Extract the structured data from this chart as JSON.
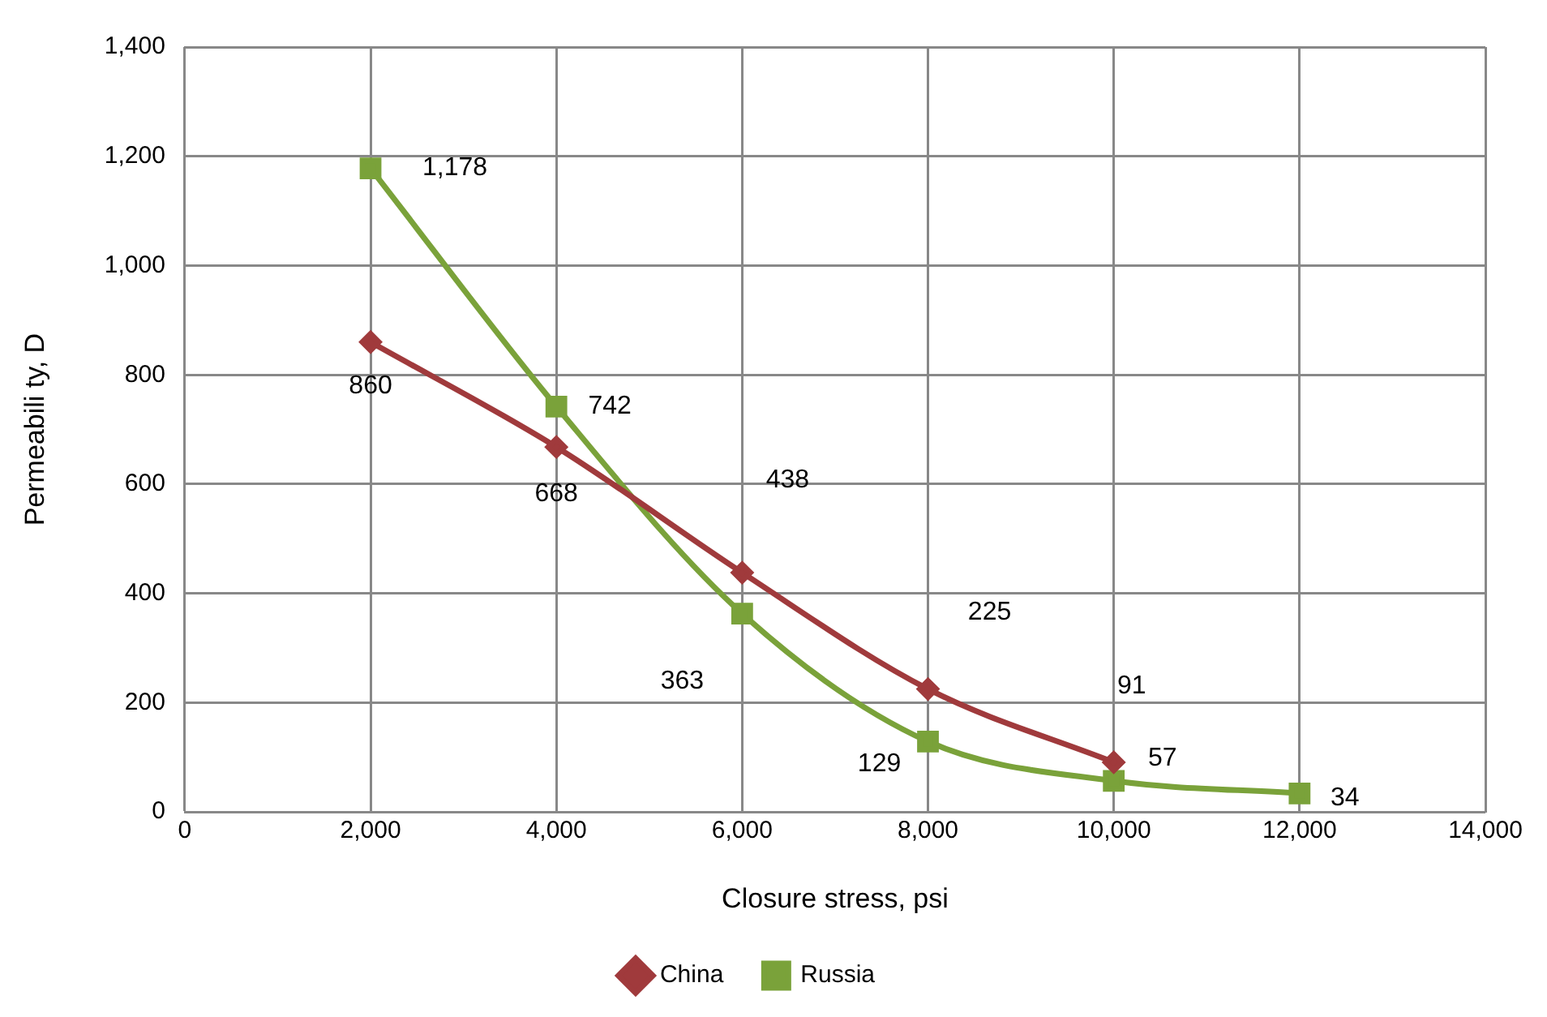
{
  "chart_data": {
    "type": "line",
    "xlabel": "Closure stress, psi",
    "ylabel": "Permeabili ty, D",
    "xlim": [
      0,
      14000
    ],
    "xticks": [
      0,
      {
        "value": 2000,
        "label": "2,000"
      },
      {
        "value": 4000,
        "label": "4,000"
      },
      {
        "value": 6000,
        "label": "6,000"
      },
      {
        "value": 8000,
        "label": "8,000"
      },
      {
        "value": 10000,
        "label": "10,000"
      },
      {
        "value": 12000,
        "label": "12,000"
      },
      {
        "value": 14000,
        "label": "14,000"
      }
    ],
    "ylim": [
      0,
      1400
    ],
    "yticks": [
      0,
      200,
      400,
      600,
      800,
      {
        "value": 1000,
        "label": "1,000"
      },
      {
        "value": 1200,
        "label": "1,200"
      },
      {
        "value": 1400,
        "label": "1,400"
      }
    ],
    "grid": true,
    "legend": "bottom",
    "line_style": "solid",
    "series": [
      {
        "name": "China",
        "color": "#a03a3c",
        "marker": "diamond",
        "x": [
          2000,
          4000,
          6000,
          8000,
          10000
        ],
        "values": [
          860,
          668,
          438,
          225,
          91
        ],
        "value_labels": [
          "860",
          "668",
          "438",
          "225",
          "91"
        ]
      },
      {
        "name": "Russia",
        "color": "#7aa23a",
        "marker": "square",
        "x": [
          2000,
          4000,
          6000,
          8000,
          10000,
          12000
        ],
        "values": [
          1178,
          742,
          363,
          129,
          57,
          34
        ],
        "value_labels": [
          "1,178",
          "742",
          "363",
          "129",
          "57",
          "34"
        ]
      }
    ]
  }
}
